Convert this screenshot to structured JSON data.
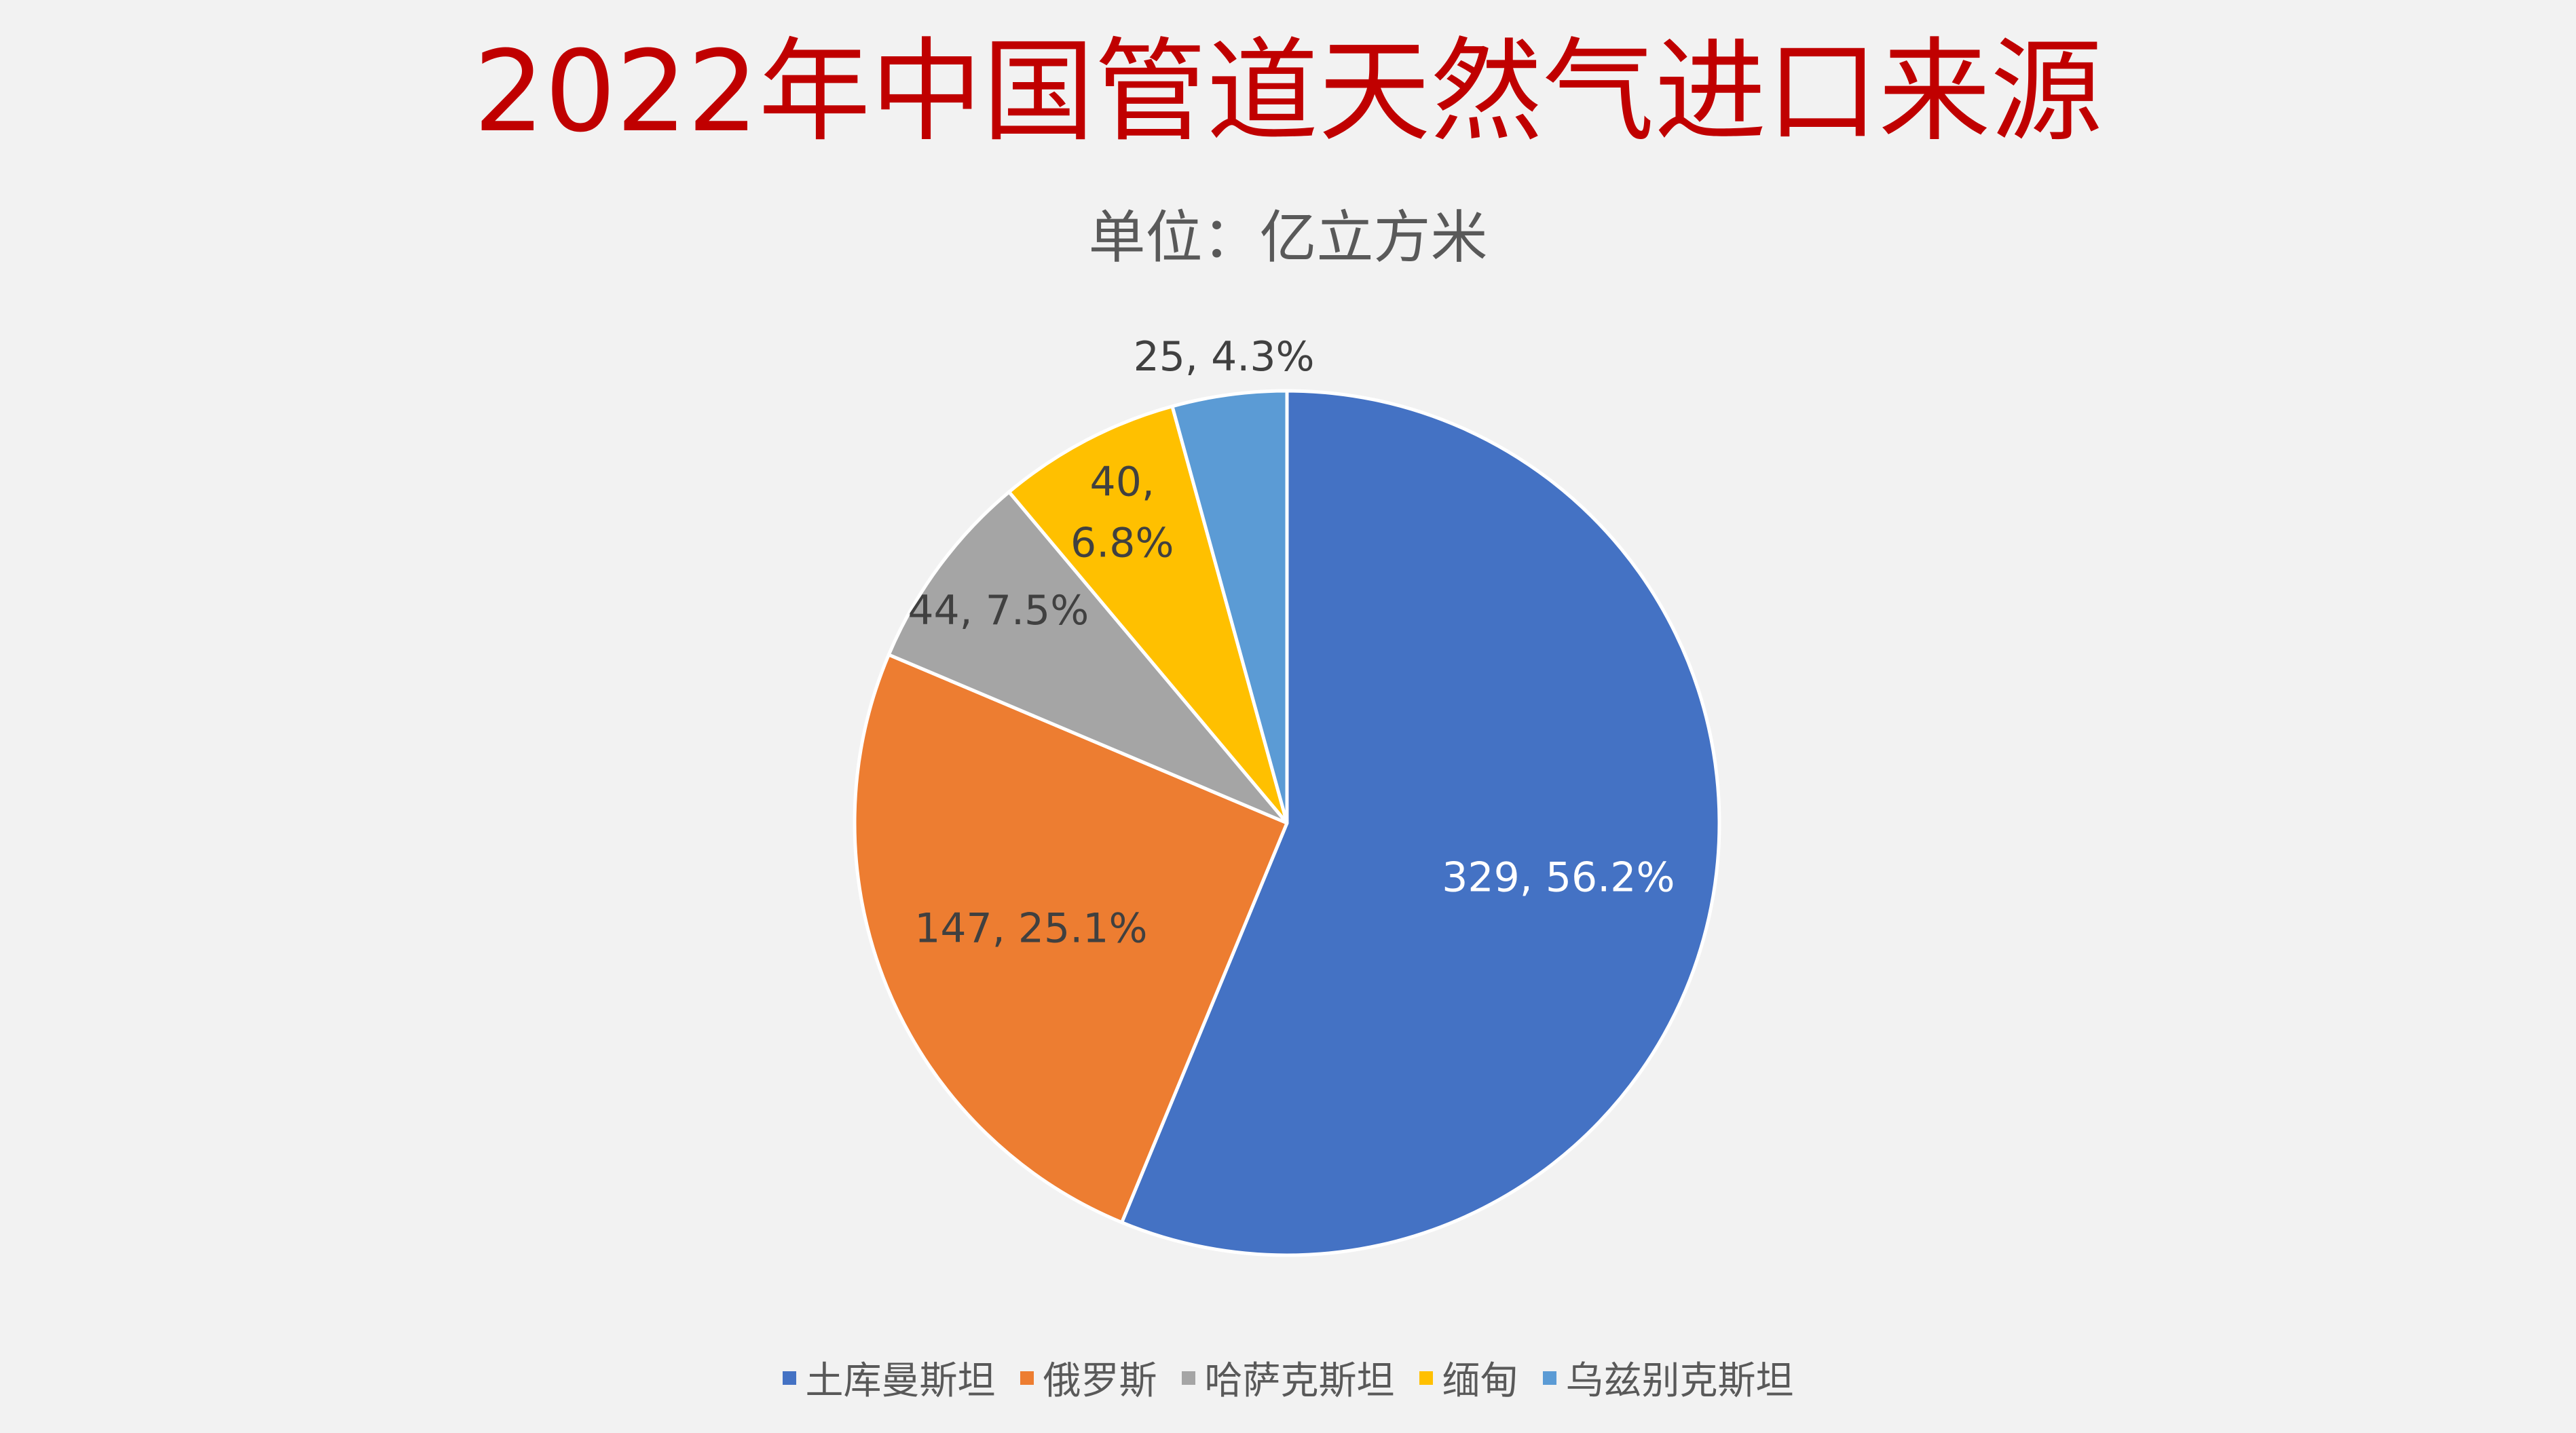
{
  "chart_data": {
    "type": "pie",
    "title": "2022年中国管道天然气进口来源",
    "subtitle": "单位：亿立方米",
    "categories": [
      "土库曼斯坦",
      "俄罗斯",
      "哈萨克斯坦",
      "缅甸",
      "乌兹别克斯坦"
    ],
    "values": [
      329,
      147,
      44,
      40,
      25
    ],
    "percent_labels": [
      "56.2%",
      "25.1%",
      "7.5%",
      "6.8%",
      "4.3%"
    ],
    "data_labels": [
      "329, 56.2%",
      "147, 25.1%",
      "44, 7.5%",
      "40, 6.8%",
      "25, 4.3%"
    ],
    "colors": [
      "#4472c4",
      "#ed7d31",
      "#a5a5a5",
      "#ffc000",
      "#5b9bd5"
    ],
    "label_colors": [
      "#ffffff",
      "#404040",
      "#404040",
      "#404040",
      "#404040"
    ],
    "start_angle": "12 o'clock",
    "direction": "clockwise",
    "legend_position": "bottom"
  }
}
